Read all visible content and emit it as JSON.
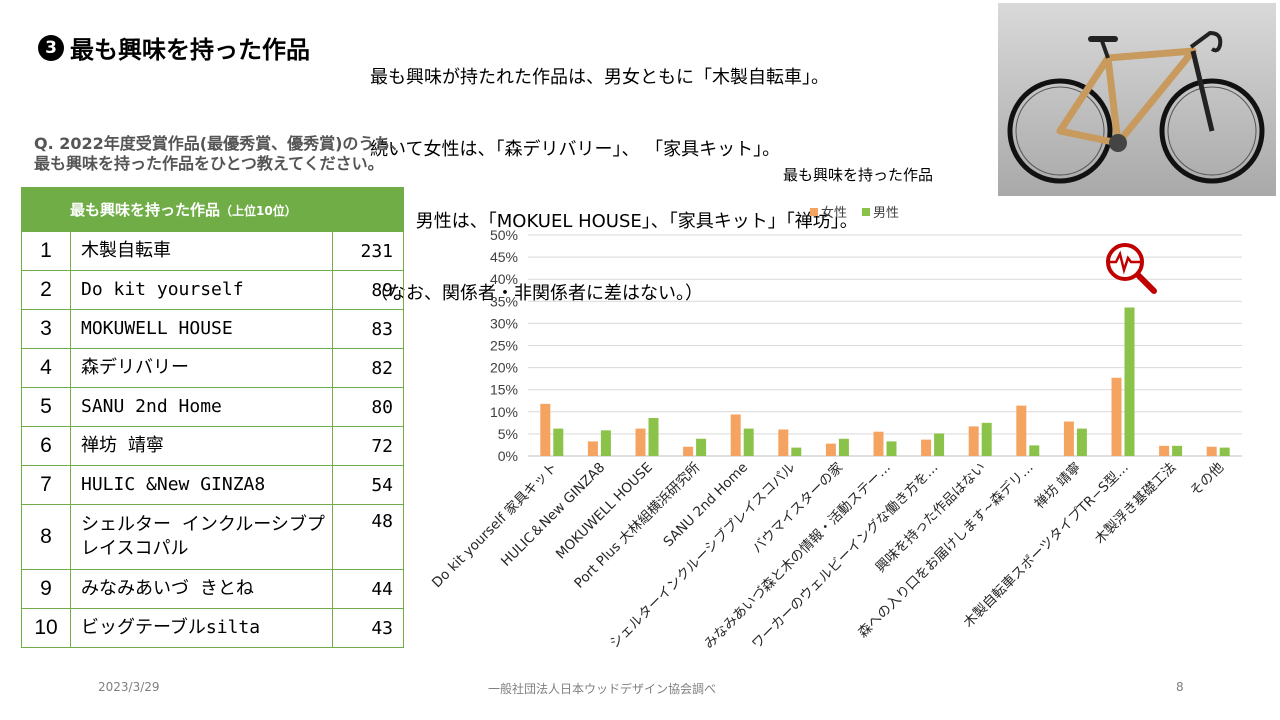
{
  "page": {
    "title_number": "3",
    "title": "最も興味を持った作品",
    "summary_lines": [
      "最も興味が持たれた作品は、男女ともに「木製自転車」。",
      "続いて女性は、「森デリバリー」、 「家具キット」。",
      "        男性は、「MOKUEL HOUSE」、「家具キット」「禅坊」。",
      "（なお、関係者・非関係者に差はない。）"
    ],
    "question_line1": "Q. 2022年度受賞作品(最優秀賞、優秀賞)のうち、",
    "question_line2": "最も興味を持った作品をひとつ教えてください。",
    "footer_date": "2023/3/29",
    "footer_source": "一般社団法人日本ウッドデザイン協会調べ",
    "footer_page": "8"
  },
  "ranking": {
    "header": "最も興味を持った作品",
    "header_note": "（上位10位）",
    "rows": [
      {
        "rank": "1",
        "name": "木製自転車",
        "value": "231"
      },
      {
        "rank": "2",
        "name": "Do kit yourself",
        "value": "89"
      },
      {
        "rank": "3",
        "name": "MOKUWELL HOUSE",
        "value": "83"
      },
      {
        "rank": "4",
        "name": "森デリバリー",
        "value": "82"
      },
      {
        "rank": "5",
        "name": "SANU 2nd Home",
        "value": "80"
      },
      {
        "rank": "6",
        "name": "禅坊 靖寧",
        "value": "72"
      },
      {
        "rank": "7",
        "name": "HULIC &New GINZA8",
        "value": "54"
      },
      {
        "rank": "8",
        "name": "シェルター インクルーシブプレイスコパル",
        "value": "48"
      },
      {
        "rank": "9",
        "name": "みなみあいづ きとね",
        "value": "44"
      },
      {
        "rank": "10",
        "name": "ビッグテーブルsilta",
        "value": "43"
      }
    ]
  },
  "colors": {
    "female": "#f4a460",
    "male": "#8bc34a",
    "table_green": "#70ad47",
    "icon_red": "#c00000"
  },
  "icons": {
    "chart_badge": "magnifier-pulse-icon",
    "photo": "wooden-bicycle-photo"
  },
  "chart_data": {
    "type": "bar",
    "title": "最も興味を持った作品",
    "ylim": [
      0,
      50
    ],
    "yticks": [
      "0%",
      "5%",
      "10%",
      "15%",
      "20%",
      "25%",
      "30%",
      "35%",
      "40%",
      "45%",
      "50%"
    ],
    "grid": true,
    "legend": "top-center",
    "categories": [
      "Do kit yourself 家具キット",
      "HULIC＆New GINZA8",
      "MOKUWELL HOUSE",
      "Port Plus 大林組横浜研究所",
      "SANU 2nd Home",
      "シェルターインクルーシブプレイスコパル",
      "バウマイスターの家",
      "みなみあいづ森と木の情報・活動ステー…",
      "ワーカーのウェルビーイングな働き方を…",
      "興味を持った作品はない",
      "森への入り口をお届けします~森デリ…",
      "禅坊 靖寧",
      "木製自転車スポーツタイプTR−S型…",
      "木製浮き基礎工法",
      "その他"
    ],
    "series": [
      {
        "name": "女性",
        "values": [
          11.8,
          3.3,
          6.2,
          2.1,
          9.4,
          6.0,
          2.8,
          5.5,
          3.7,
          6.7,
          11.4,
          7.8,
          17.7,
          2.3,
          2.1
        ]
      },
      {
        "name": "男性",
        "values": [
          6.2,
          5.8,
          8.6,
          3.9,
          6.2,
          1.9,
          3.9,
          3.3,
          5.1,
          7.5,
          2.4,
          6.2,
          33.6,
          2.3,
          1.9
        ]
      }
    ]
  }
}
